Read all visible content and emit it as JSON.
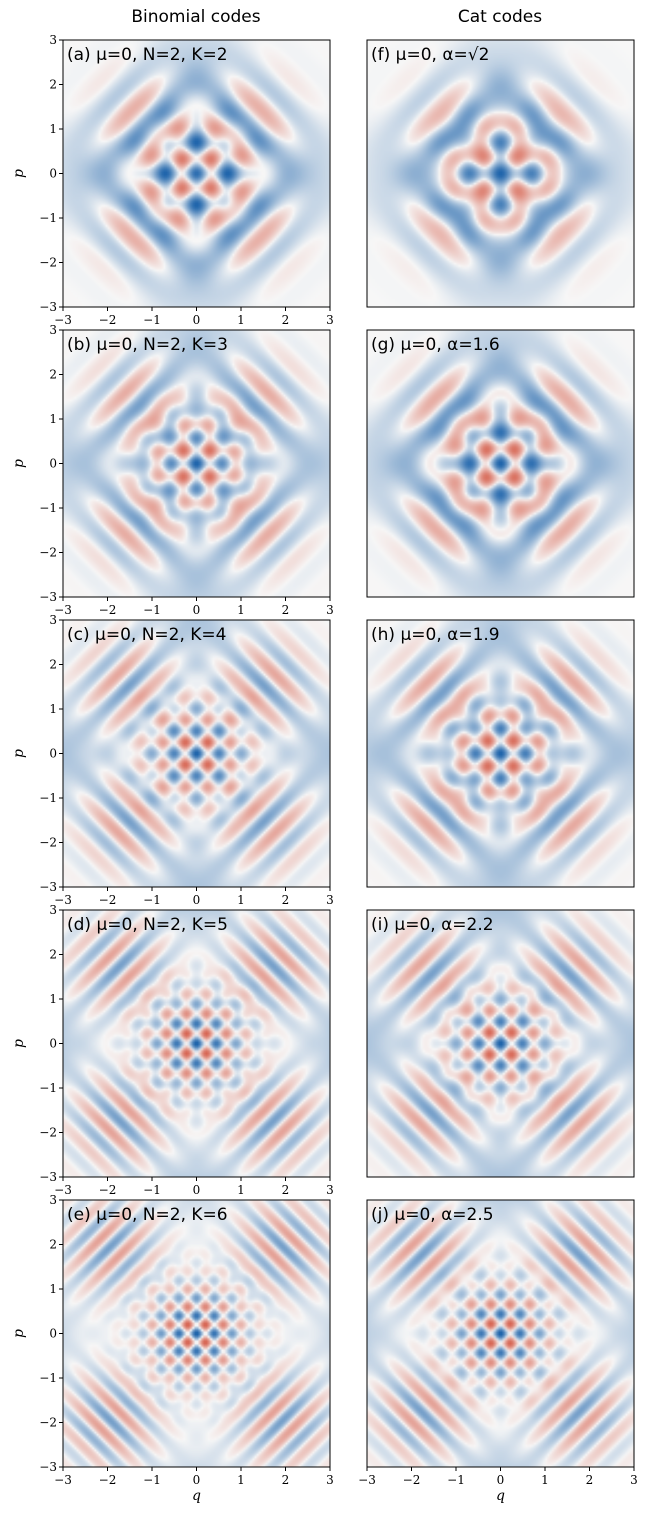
{
  "column_titles": [
    "Binomial codes",
    "Cat codes"
  ],
  "colors": {
    "positive": "#2166ac",
    "negative": "#d6604d",
    "background": "#f7f7f7"
  },
  "chart_data": [
    {
      "type": "heatmap",
      "label": "(a) μ=0, N=2, K=2",
      "column": 0,
      "row": 0,
      "xlabel": "",
      "ylabel": "p",
      "xlim": [
        -3,
        3
      ],
      "ylim": [
        -3,
        3
      ],
      "xticks": [
        "−3",
        "−2",
        "−1",
        "0",
        "1",
        "2",
        "3"
      ],
      "yticks": [
        "−3",
        "−2",
        "−1",
        "0",
        "1",
        "2",
        "3"
      ],
      "params": {
        "kind": "binomial",
        "N": 2,
        "K": 2
      }
    },
    {
      "type": "heatmap",
      "label": "(b) μ=0, N=2, K=3",
      "column": 0,
      "row": 1,
      "xlabel": "",
      "ylabel": "p",
      "xlim": [
        -3,
        3
      ],
      "ylim": [
        -3,
        3
      ],
      "xticks": [
        "−3",
        "−2",
        "−1",
        "0",
        "1",
        "2",
        "3"
      ],
      "yticks": [
        "−3",
        "−2",
        "−1",
        "0",
        "1",
        "2",
        "3"
      ],
      "params": {
        "kind": "binomial",
        "N": 2,
        "K": 3
      }
    },
    {
      "type": "heatmap",
      "label": "(c) μ=0, N=2, K=4",
      "column": 0,
      "row": 2,
      "xlabel": "",
      "ylabel": "p",
      "xlim": [
        -3,
        3
      ],
      "ylim": [
        -3,
        3
      ],
      "xticks": [
        "−3",
        "−2",
        "−1",
        "0",
        "1",
        "2",
        "3"
      ],
      "yticks": [
        "−3",
        "−2",
        "−1",
        "0",
        "1",
        "2",
        "3"
      ],
      "params": {
        "kind": "binomial",
        "N": 2,
        "K": 4
      }
    },
    {
      "type": "heatmap",
      "label": "(d) μ=0, N=2, K=5",
      "column": 0,
      "row": 3,
      "xlabel": "",
      "ylabel": "p",
      "xlim": [
        -3,
        3
      ],
      "ylim": [
        -3,
        3
      ],
      "xticks": [
        "−3",
        "−2",
        "−1",
        "0",
        "1",
        "2",
        "3"
      ],
      "yticks": [
        "−3",
        "−2",
        "−1",
        "0",
        "1",
        "2",
        "3"
      ],
      "params": {
        "kind": "binomial",
        "N": 2,
        "K": 5
      }
    },
    {
      "type": "heatmap",
      "label": "(e) μ=0, N=2, K=6",
      "column": 0,
      "row": 4,
      "xlabel": "q",
      "ylabel": "p",
      "xlim": [
        -3,
        3
      ],
      "ylim": [
        -3,
        3
      ],
      "xticks": [
        "−3",
        "−2",
        "−1",
        "0",
        "1",
        "2",
        "3"
      ],
      "yticks": [
        "−3",
        "−2",
        "−1",
        "0",
        "1",
        "2",
        "3"
      ],
      "params": {
        "kind": "binomial",
        "N": 2,
        "K": 6
      }
    },
    {
      "type": "heatmap",
      "label": "(f) μ=0, α=√2",
      "column": 1,
      "row": 0,
      "xlabel": "",
      "ylabel": "",
      "xlim": [
        -3,
        3
      ],
      "ylim": [
        -3,
        3
      ],
      "xticks": [],
      "yticks": [],
      "params": {
        "kind": "cat",
        "alpha": 1.4142
      }
    },
    {
      "type": "heatmap",
      "label": "(g) μ=0, α=1.6",
      "column": 1,
      "row": 1,
      "xlabel": "",
      "ylabel": "",
      "xlim": [
        -3,
        3
      ],
      "ylim": [
        -3,
        3
      ],
      "xticks": [],
      "yticks": [],
      "params": {
        "kind": "cat",
        "alpha": 1.6
      }
    },
    {
      "type": "heatmap",
      "label": "(h) μ=0, α=1.9",
      "column": 1,
      "row": 2,
      "xlabel": "",
      "ylabel": "",
      "xlim": [
        -3,
        3
      ],
      "ylim": [
        -3,
        3
      ],
      "xticks": [],
      "yticks": [],
      "params": {
        "kind": "cat",
        "alpha": 1.9
      }
    },
    {
      "type": "heatmap",
      "label": "(i) μ=0, α=2.2",
      "column": 1,
      "row": 3,
      "xlabel": "",
      "ylabel": "",
      "xlim": [
        -3,
        3
      ],
      "ylim": [
        -3,
        3
      ],
      "xticks": [],
      "yticks": [],
      "params": {
        "kind": "cat",
        "alpha": 2.2
      }
    },
    {
      "type": "heatmap",
      "label": "(j) μ=0, α=2.5",
      "column": 1,
      "row": 4,
      "xlabel": "q",
      "ylabel": "",
      "xlim": [
        -3,
        3
      ],
      "ylim": [
        -3,
        3
      ],
      "xticks": [
        "−3",
        "−2",
        "−1",
        "0",
        "1",
        "2",
        "3"
      ],
      "yticks": [],
      "params": {
        "kind": "cat",
        "alpha": 2.5
      }
    }
  ]
}
